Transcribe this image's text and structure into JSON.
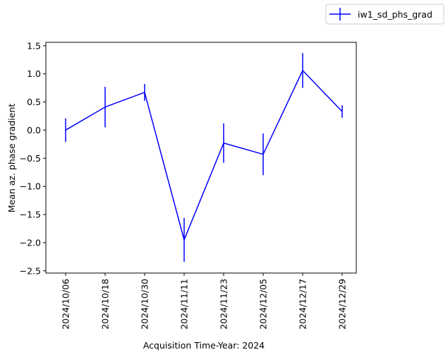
{
  "chart_data": {
    "type": "line",
    "xlabel": "Acquisition Time-Year: 2024",
    "ylabel": "Mean az. phase gradient",
    "categories": [
      "2024/10/06",
      "2024/10/18",
      "2024/10/30",
      "2024/11/11",
      "2024/11/23",
      "2024/12/05",
      "2024/12/17",
      "2024/12/29"
    ],
    "series": [
      {
        "name": "iw1_sd_phs_grad",
        "color": "#0000ff",
        "values": [
          0.0,
          0.41,
          0.67,
          -1.95,
          -0.23,
          -0.43,
          1.06,
          0.33
        ],
        "errors": [
          0.21,
          0.36,
          0.15,
          0.39,
          0.35,
          0.37,
          0.31,
          0.11
        ]
      }
    ],
    "ylim": [
      -2.54,
      1.56
    ],
    "yticks": [
      -2.5,
      -2.0,
      -1.5,
      -1.0,
      -0.5,
      0.0,
      0.5,
      1.0,
      1.5
    ],
    "ytick_labels": [
      "−2.5",
      "−2.0",
      "−1.5",
      "−1.0",
      "−0.5",
      "0.0",
      "0.5",
      "1.0",
      "1.5"
    ],
    "grid": false,
    "legend_position": "top-right (outside plot)"
  }
}
